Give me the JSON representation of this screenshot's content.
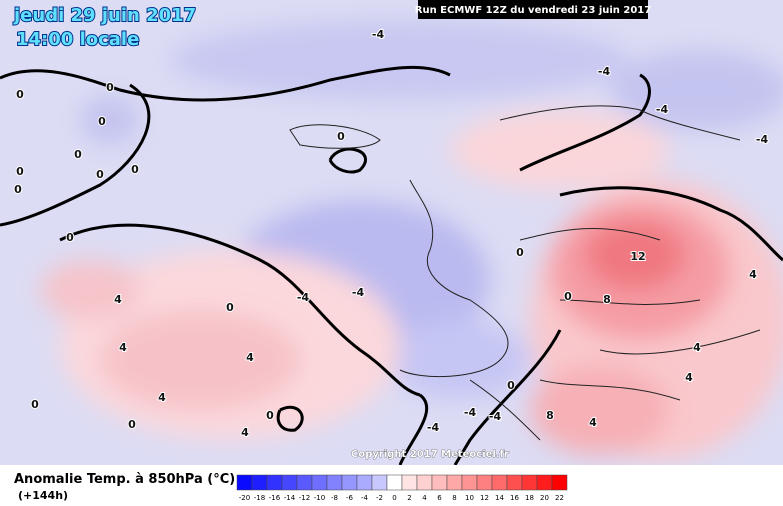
{
  "header": {
    "date": "jeudi 29 juin 2017",
    "time": "14:00 locale",
    "run": "Run ECMWF 12Z du vendredi 23 juin 2017"
  },
  "map": {
    "copyright": "Copyright 2017 Meteociel.fr",
    "contour_labels": [
      "-4",
      "-4",
      "-4",
      "-4",
      "0",
      "0",
      "0",
      "0",
      "0",
      "0",
      "0",
      "0",
      "0",
      "0",
      "0",
      "0",
      "0",
      "0",
      "0",
      "0",
      "0",
      "-4",
      "-4",
      "-4",
      "-4",
      "-4",
      "4",
      "4",
      "4",
      "4",
      "4",
      "4",
      "4",
      "4",
      "4",
      "8",
      "8",
      "12"
    ]
  },
  "legend": {
    "title": "Anomalie Temp. à 850hPa (°C)",
    "lead": "(+144h)",
    "scale": {
      "ticks": [
        -20,
        -18,
        -16,
        -14,
        -12,
        -10,
        -8,
        -6,
        -4,
        -2,
        0,
        2,
        4,
        6,
        8,
        10,
        12,
        14,
        16,
        18,
        20,
        22
      ],
      "colors": [
        "#0a0aff",
        "#1e1eff",
        "#3232ff",
        "#4646ff",
        "#5a5aff",
        "#6e6eff",
        "#8282ff",
        "#9696ff",
        "#aaaaff",
        "#c8c8ff",
        "#ffffff",
        "#ffe4e4",
        "#ffd0d0",
        "#ffbcbc",
        "#ffa8a8",
        "#ff9494",
        "#ff8080",
        "#ff6a6a",
        "#ff5050",
        "#ff3636",
        "#ff1c1c",
        "#ff0000"
      ]
    }
  }
}
